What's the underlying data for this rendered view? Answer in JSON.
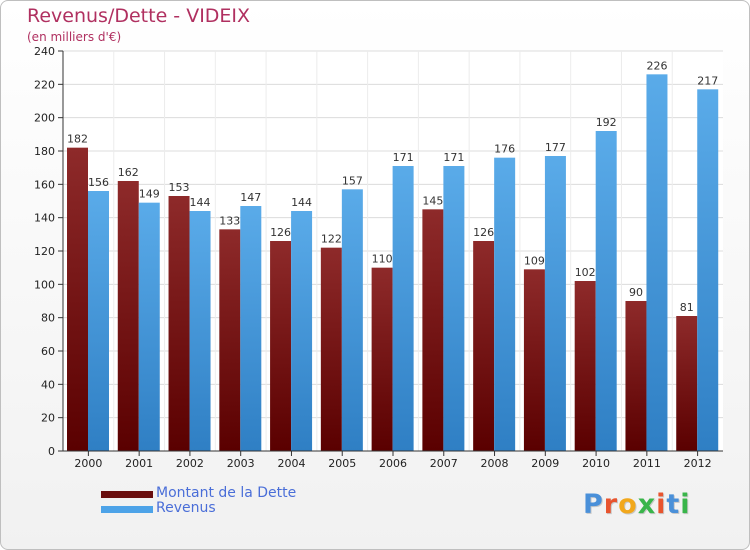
{
  "title": "Revenus/Dette - VIDEIX",
  "subtitle": "(en milliers d'€)",
  "logo": {
    "text": "Proxiti",
    "letter_colors": [
      "#4a90d9",
      "#e8542e",
      "#f2a81c",
      "#39b54a",
      "#e8542e",
      "#4a90d9",
      "#39b54a"
    ]
  },
  "chart_data": {
    "type": "bar",
    "categories": [
      "2000",
      "2001",
      "2002",
      "2003",
      "2004",
      "2005",
      "2006",
      "2007",
      "2008",
      "2009",
      "2010",
      "2011",
      "2012"
    ],
    "series": [
      {
        "name": "Montant de la Dette",
        "color": "#8b1a1a",
        "values": [
          182,
          162,
          153,
          133,
          126,
          122,
          110,
          145,
          126,
          109,
          102,
          90,
          81
        ]
      },
      {
        "name": "Revenus",
        "color": "#4da3e8",
        "values": [
          156,
          149,
          144,
          147,
          144,
          157,
          171,
          171,
          176,
          177,
          192,
          226,
          217
        ]
      }
    ],
    "ylim": [
      0,
      240
    ],
    "yticks": [
      0,
      20,
      40,
      60,
      80,
      100,
      120,
      140,
      160,
      180,
      200,
      220,
      240
    ],
    "grid": true,
    "legend_position": "bottom-left"
  }
}
